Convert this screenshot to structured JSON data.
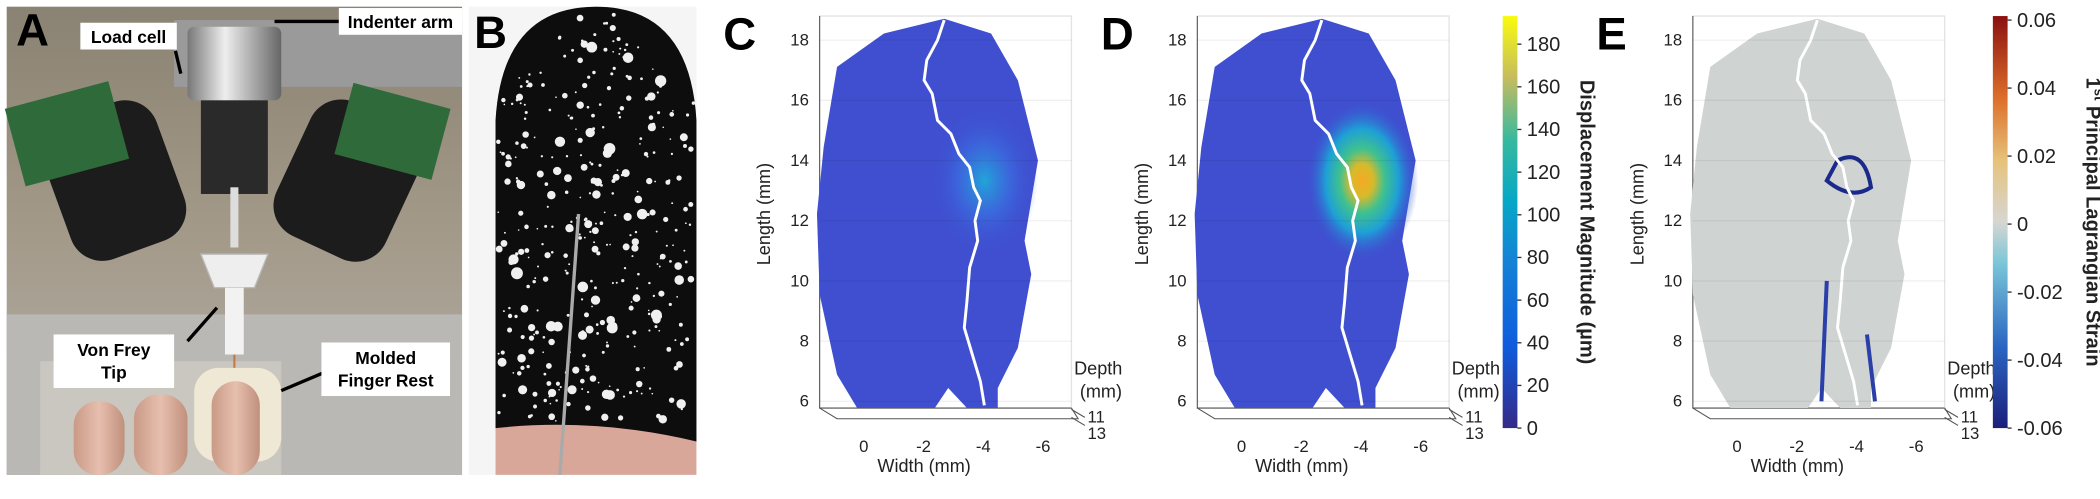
{
  "panel_a": {
    "label": "A",
    "load_cell": "Load cell",
    "indenter_arm": "Indenter arm",
    "von_frey_tip": [
      "Von Frey",
      "Tip"
    ],
    "molded_finger_rest": [
      "Molded",
      "Finger Rest"
    ]
  },
  "panel_b": {
    "label": "B"
  },
  "plots": [
    {
      "label": "C",
      "ylabel": "Length (mm)",
      "xlabel": "Width (mm)",
      "depth_label": [
        "Depth",
        "(mm)"
      ],
      "yticks": [
        6,
        8,
        10,
        12,
        14,
        16,
        18
      ],
      "xticks": [
        0,
        -2,
        -4,
        -6
      ],
      "depth_ticks": [
        11,
        13
      ]
    },
    {
      "label": "D",
      "ylabel": "Length (mm)",
      "xlabel": "Width (mm)",
      "depth_label": [
        "Depth",
        "(mm)"
      ],
      "yticks": [
        6,
        8,
        10,
        12,
        14,
        16,
        18
      ],
      "xticks": [
        0,
        -2,
        -4,
        -6
      ],
      "depth_ticks": [
        11,
        13
      ],
      "colorbar": {
        "title": "Displacement Magnitude (µm)",
        "ticks": [
          0,
          20,
          40,
          60,
          80,
          100,
          120,
          140,
          160,
          180
        ]
      }
    },
    {
      "label": "E",
      "ylabel": "Length (mm)",
      "xlabel": "Width (mm)",
      "depth_label": [
        "Depth",
        "(mm)"
      ],
      "yticks": [
        6,
        8,
        10,
        12,
        14,
        16,
        18
      ],
      "xticks": [
        0,
        -2,
        -4,
        -6
      ],
      "depth_ticks": [
        11,
        13
      ],
      "colorbar": {
        "title_number": "1",
        "title_superscript": "st",
        "title": "Principal Lagrangian Strain",
        "ticks": [
          0.06,
          0.04,
          0.02,
          0,
          -0.02,
          -0.04,
          -0.06
        ]
      }
    }
  ]
}
